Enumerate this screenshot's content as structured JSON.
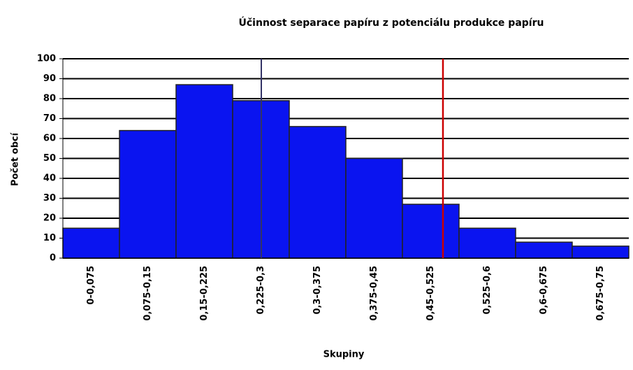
{
  "chart_data": {
    "type": "bar",
    "title": "Účinnost separace papíru z potenciálu produkce papíru",
    "x_label": "Skupiny",
    "y_label": "Počet obcí",
    "categories": [
      "0-0,075",
      "0,075-0,15",
      "0,15-0,225",
      "0,225-0,3",
      "0,3-0,375",
      "0,375-0,45",
      "0,45-0,525",
      "0,525-0,6",
      "0,6-0,675",
      "0,675-0,75"
    ],
    "values": [
      15,
      64,
      87,
      79,
      66,
      50,
      27,
      15,
      8,
      6
    ],
    "color": "#0a14f0",
    "ylim": [
      0,
      100
    ],
    "yticks": [
      0,
      10,
      20,
      30,
      40,
      50,
      60,
      70,
      80,
      90,
      100
    ],
    "grid": true
  }
}
